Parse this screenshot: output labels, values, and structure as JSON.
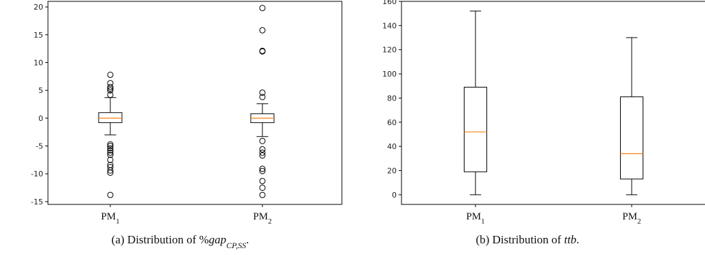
{
  "chart_data": [
    {
      "type": "box",
      "categories": [
        "PM",
        "PM"
      ],
      "category_subscripts": [
        "1",
        "2"
      ],
      "ylim": [
        -15.5,
        21
      ],
      "yticks": [
        -15,
        -10,
        -5,
        0,
        5,
        10,
        15,
        20
      ],
      "boxes": [
        {
          "whislo": -3,
          "q1": -0.8,
          "med": 0,
          "q3": 1,
          "whishi": 3.7,
          "fliers": [
            7.8,
            6.3,
            5.6,
            5.3,
            5.0,
            4.2,
            -4.7,
            -5.0,
            -5.4,
            -5.8,
            -6.2,
            -6.6,
            -7.5,
            -8.4,
            -8.8,
            -9.4,
            -9.8,
            -13.8
          ]
        },
        {
          "whislo": -3.3,
          "q1": -0.8,
          "med": 0,
          "q3": 0.8,
          "whishi": 2.6,
          "fliers": [
            19.8,
            15.8,
            12.0,
            12.1,
            4.6,
            3.8,
            -4.1,
            -5.6,
            -6.2,
            -6.7,
            -9.1,
            -9.5,
            -11.3,
            -12.5,
            -13.8
          ]
        }
      ],
      "caption": {
        "prefix": "(a) Distribution of %",
        "main": "gap",
        "sub": "CP,SS",
        "suffix": "."
      },
      "colors": {
        "median": "#ff7f0e",
        "line": "#000000"
      }
    },
    {
      "type": "box",
      "categories": [
        "PM",
        "PM"
      ],
      "category_subscripts": [
        "1",
        "2"
      ],
      "ylim": [
        -8,
        160
      ],
      "yticks": [
        0,
        20,
        40,
        60,
        80,
        100,
        120,
        140,
        160
      ],
      "boxes": [
        {
          "whislo": 0,
          "q1": 19,
          "med": 52,
          "q3": 89,
          "whishi": 152,
          "fliers": []
        },
        {
          "whislo": 0,
          "q1": 13,
          "med": 34,
          "q3": 81,
          "whishi": 130,
          "fliers": []
        }
      ],
      "caption": {
        "prefix": "(b) Distribution of ",
        "main": "ttb",
        "sub": "",
        "suffix": "."
      },
      "colors": {
        "median": "#ff7f0e",
        "line": "#000000"
      }
    }
  ]
}
